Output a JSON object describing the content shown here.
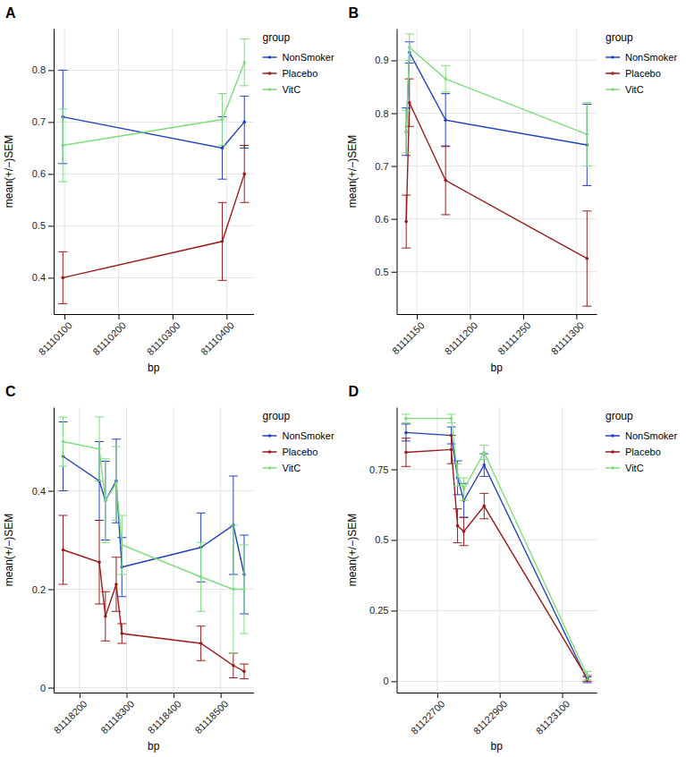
{
  "chart_data": [
    {
      "type": "line",
      "title": "A",
      "x_label": "bp",
      "y_label": "mean(+/−)SEM",
      "legend_title": "group",
      "legend": "right",
      "grid": true,
      "marker": "circle",
      "x": [
        81110097,
        81110392,
        81110433
      ],
      "xlim": [
        81110080,
        81110450
      ],
      "xticks": [
        81110100,
        81110200,
        81110300,
        81110400
      ],
      "ylim": [
        0.33,
        0.88
      ],
      "yticks": [
        0.4,
        0.5,
        0.6,
        0.7,
        0.8
      ],
      "series": [
        {
          "name": "NonSmoker",
          "color": "#2342c2",
          "values": [
            0.71,
            0.65,
            0.7
          ],
          "errors": [
            0.09,
            0.06,
            0.05
          ]
        },
        {
          "name": "Placebo",
          "color": "#9b1b1b",
          "values": [
            0.4,
            0.47,
            0.6
          ],
          "errors": [
            0.05,
            0.075,
            0.055
          ]
        },
        {
          "name": "VitC",
          "color": "#7ddc7d",
          "values": [
            0.655,
            0.705,
            0.815
          ],
          "errors": [
            0.07,
            0.05,
            0.045
          ]
        }
      ]
    },
    {
      "type": "line",
      "title": "B",
      "x_label": "bp",
      "y_label": "mean(+/−)SEM",
      "legend_title": "group",
      "legend": "right",
      "grid": true,
      "marker": "circle",
      "x": [
        81111140,
        81111143,
        81111177,
        81111310
      ],
      "xlim": [
        81111131,
        81111319
      ],
      "xticks": [
        81111150,
        81111200,
        81111250,
        81111300
      ],
      "ylim": [
        0.42,
        0.96
      ],
      "yticks": [
        0.5,
        0.6,
        0.7,
        0.8,
        0.9
      ],
      "series": [
        {
          "name": "NonSmoker",
          "color": "#2342c2",
          "values": [
            0.765,
            0.915,
            0.787,
            0.74
          ],
          "errors": [
            0.045,
            0.02,
            0.05,
            0.077
          ]
        },
        {
          "name": "Placebo",
          "color": "#9b1b1b",
          "values": [
            0.595,
            0.82,
            0.673,
            0.525
          ],
          "errors": [
            0.05,
            0.045,
            0.065,
            0.09
          ]
        },
        {
          "name": "VitC",
          "color": "#7ddc7d",
          "values": [
            0.765,
            0.925,
            0.865,
            0.76
          ],
          "errors": [
            0.04,
            0.025,
            0.025,
            0.06
          ]
        }
      ]
    },
    {
      "type": "line",
      "title": "C",
      "x_label": "bp",
      "y_label": "mean(+/−)SEM",
      "legend_title": "group",
      "legend": "right",
      "grid": true,
      "marker": "circle",
      "x": [
        81118165,
        81118242,
        81118255,
        81118278,
        81118290,
        81118458,
        81118527,
        81118550
      ],
      "xlim": [
        81118145,
        81118570
      ],
      "xticks": [
        81118200,
        81118300,
        81118400,
        81118500
      ],
      "ylim": [
        -0.01,
        0.57
      ],
      "yticks": [
        0.0,
        0.2,
        0.4
      ],
      "series": [
        {
          "name": "NonSmoker",
          "color": "#2342c2",
          "values": [
            0.47,
            0.42,
            0.38,
            0.42,
            0.245,
            0.285,
            0.33,
            0.23
          ],
          "errors": [
            0.07,
            0.08,
            0.08,
            0.085,
            0.06,
            0.07,
            0.1,
            0.08
          ]
        },
        {
          "name": "Placebo",
          "color": "#9b1b1b",
          "values": [
            0.28,
            0.255,
            0.145,
            0.21,
            0.11,
            0.09,
            0.045,
            0.033
          ],
          "errors": [
            0.07,
            0.085,
            0.05,
            0.055,
            0.02,
            0.035,
            0.025,
            0.015
          ]
        },
        {
          "name": "VitC",
          "color": "#7ddc7d",
          "values": [
            0.5,
            0.485,
            0.38,
            0.415,
            0.29,
            0.225,
            0.2,
            0.2
          ],
          "errors": [
            0.05,
            0.065,
            0.085,
            0.075,
            0.06,
            0.07,
            0.13,
            0.09
          ]
        }
      ]
    },
    {
      "type": "line",
      "title": "D",
      "x_label": "bp",
      "y_label": "mean(+/−)SEM",
      "legend_title": "group",
      "legend": "right",
      "grid": true,
      "marker": "circle",
      "x": [
        81122600,
        81122745,
        81122765,
        81122785,
        81122850,
        81123180
      ],
      "xlim": [
        81122570,
        81123210
      ],
      "xticks": [
        81122700,
        81122900,
        81123100
      ],
      "ylim": [
        -0.04,
        0.97
      ],
      "yticks": [
        0.0,
        0.25,
        0.5,
        0.75
      ],
      "series": [
        {
          "name": "NonSmoker",
          "color": "#2342c2",
          "values": [
            0.88,
            0.87,
            0.72,
            0.64,
            0.765,
            0.005
          ],
          "errors": [
            0.03,
            0.03,
            0.06,
            0.06,
            0.04,
            0.01
          ]
        },
        {
          "name": "Placebo",
          "color": "#9b1b1b",
          "values": [
            0.81,
            0.82,
            0.55,
            0.53,
            0.62,
            0.01
          ],
          "errors": [
            0.05,
            0.05,
            0.06,
            0.05,
            0.045,
            0.01
          ]
        },
        {
          "name": "VitC",
          "color": "#7ddc7d",
          "values": [
            0.93,
            0.93,
            0.73,
            0.68,
            0.81,
            0.02
          ],
          "errors": [
            0.015,
            0.015,
            0.04,
            0.04,
            0.025,
            0.015
          ]
        }
      ]
    }
  ]
}
